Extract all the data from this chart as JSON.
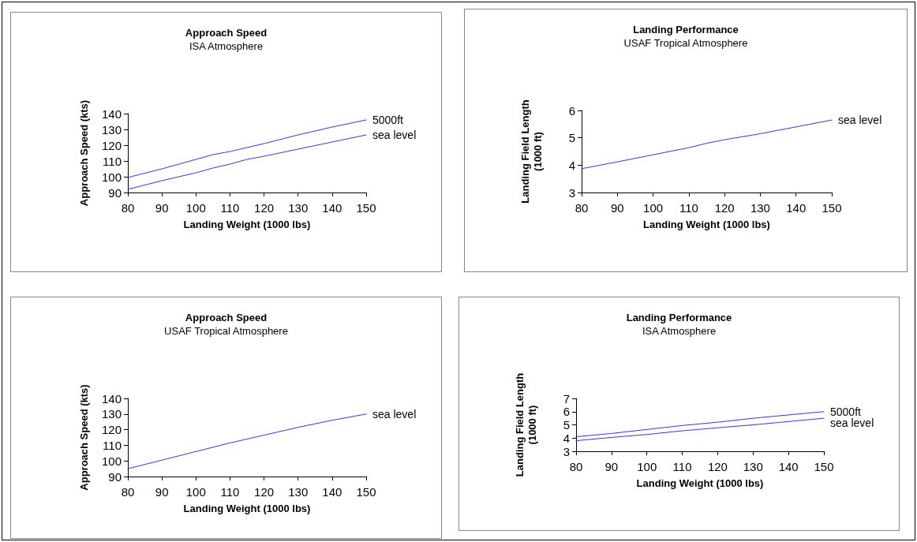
{
  "chart_data": [
    {
      "type": "line",
      "title": "Approach Speed",
      "subtitle": "ISA Atmosphere",
      "xlabel": "Landing Weight (1000 lbs)",
      "ylabel": "Approach Speed (kts)",
      "xlim": [
        80,
        150
      ],
      "xticks": [
        80,
        90,
        100,
        110,
        120,
        130,
        140,
        150
      ],
      "ylim": [
        90,
        140
      ],
      "yticks": [
        90,
        100,
        110,
        120,
        130,
        140
      ],
      "grid": false,
      "legend": false,
      "marker": "none",
      "line_style": "solid",
      "series": [
        {
          "name": "5000ft",
          "color": "#3333ff",
          "x": [
            80,
            90,
            100,
            105,
            110,
            120,
            130,
            140,
            150
          ],
          "values": [
            99.5,
            105,
            111,
            114,
            116,
            121,
            126.5,
            131.5,
            136
          ]
        },
        {
          "name": "sea level",
          "color": "#3333ff",
          "x": [
            80,
            90,
            100,
            105,
            110,
            115,
            120,
            130,
            140,
            150
          ],
          "values": [
            92,
            97.5,
            102.5,
            105.5,
            108,
            111,
            113,
            117.5,
            122,
            126.5
          ]
        }
      ]
    },
    {
      "type": "line",
      "title": "Landing Performance",
      "subtitle": "USAF Tropical Atmosphere",
      "xlabel": "Landing Weight (1000 lbs)",
      "ylabel": "Landing Field Length\n(1000 ft)",
      "xlim": [
        80,
        150
      ],
      "xticks": [
        80,
        90,
        100,
        110,
        120,
        130,
        140,
        150
      ],
      "ylim": [
        3,
        6
      ],
      "yticks": [
        3,
        4,
        5,
        6
      ],
      "grid": false,
      "legend": false,
      "marker": "none",
      "line_style": "solid",
      "series": [
        {
          "name": "sea level",
          "color": "#3333ff",
          "x": [
            80,
            90,
            100,
            110,
            115,
            120,
            130,
            140,
            150
          ],
          "values": [
            3.87,
            4.12,
            4.38,
            4.64,
            4.8,
            4.93,
            5.15,
            5.4,
            5.65
          ]
        }
      ]
    },
    {
      "type": "line",
      "title": "Approach Speed",
      "subtitle": "USAF Tropical Atmosphere",
      "xlabel": "Landing Weight (1000 lbs)",
      "ylabel": "Approach Speed (kts)",
      "xlim": [
        80,
        150
      ],
      "xticks": [
        80,
        90,
        100,
        110,
        120,
        130,
        140,
        150
      ],
      "ylim": [
        90,
        140
      ],
      "yticks": [
        90,
        100,
        110,
        120,
        130,
        140
      ],
      "grid": false,
      "legend": false,
      "marker": "none",
      "line_style": "solid",
      "series": [
        {
          "name": "sea level",
          "color": "#3333ff",
          "x": [
            80,
            90,
            100,
            110,
            120,
            130,
            140,
            150
          ],
          "values": [
            95,
            100.5,
            106,
            111.5,
            116.5,
            121.5,
            126,
            130
          ]
        }
      ]
    },
    {
      "type": "line",
      "title": "Landing Performance",
      "subtitle": "ISA Atmosphere",
      "xlabel": "Landing Weight (1000 lbs)",
      "ylabel": "Landing Field Length\n(1000 ft)",
      "xlim": [
        80,
        150
      ],
      "xticks": [
        80,
        90,
        100,
        110,
        120,
        130,
        140,
        150
      ],
      "ylim": [
        3,
        7
      ],
      "yticks": [
        3,
        4,
        5,
        6,
        7
      ],
      "grid": false,
      "legend": false,
      "marker": "none",
      "line_style": "solid",
      "series": [
        {
          "name": "5000ft",
          "color": "#3333ff",
          "x": [
            80,
            90,
            95,
            100,
            110,
            120,
            130,
            140,
            150
          ],
          "values": [
            4.1,
            4.35,
            4.5,
            4.65,
            4.95,
            5.2,
            5.5,
            5.75,
            6.0
          ]
        },
        {
          "name": "sea level",
          "color": "#3333ff",
          "x": [
            80,
            90,
            100,
            110,
            120,
            130,
            140,
            150
          ],
          "values": [
            3.8,
            4.05,
            4.27,
            4.55,
            4.78,
            5.0,
            5.25,
            5.5
          ]
        }
      ]
    }
  ]
}
